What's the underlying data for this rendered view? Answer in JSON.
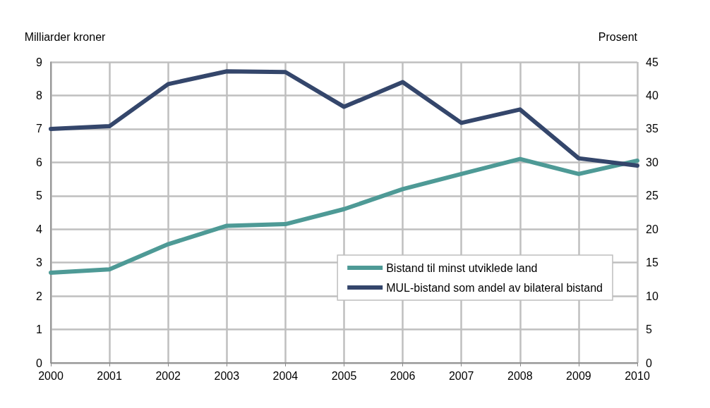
{
  "chart_data": {
    "type": "line",
    "ylabel": "Milliarder kroner",
    "y2label": "Prosent",
    "x": [
      2000,
      2001,
      2002,
      2003,
      2004,
      2005,
      2006,
      2007,
      2008,
      2009,
      2010
    ],
    "xlim": [
      2000,
      2010
    ],
    "xticks": [
      2000,
      2001,
      2002,
      2003,
      2004,
      2005,
      2006,
      2007,
      2008,
      2009,
      2010
    ],
    "ylim": [
      0,
      9
    ],
    "yticks": [
      0,
      1,
      2,
      3,
      4,
      5,
      6,
      7,
      8,
      9
    ],
    "y2lim": [
      0,
      45
    ],
    "y2ticks": [
      0,
      5,
      10,
      15,
      20,
      25,
      30,
      35,
      40,
      45
    ],
    "grid": true,
    "legend": "bottom right",
    "marker": "none",
    "line_style": "solid",
    "series": [
      {
        "name": "Bistand til minst utviklede land",
        "color": "#4e9a96",
        "values": [
          2.7,
          2.8,
          3.55,
          4.1,
          4.15,
          4.6,
          5.2,
          5.65,
          6.1,
          5.65,
          6.05
        ]
      },
      {
        "name": "MUL-bistand som andel av bilateral bistand",
        "color": "#34466b",
        "axis": "y2",
        "values": [
          35.0,
          35.4,
          41.7,
          43.6,
          43.5,
          38.3,
          42.0,
          35.9,
          37.9,
          30.6,
          29.5
        ]
      }
    ]
  }
}
